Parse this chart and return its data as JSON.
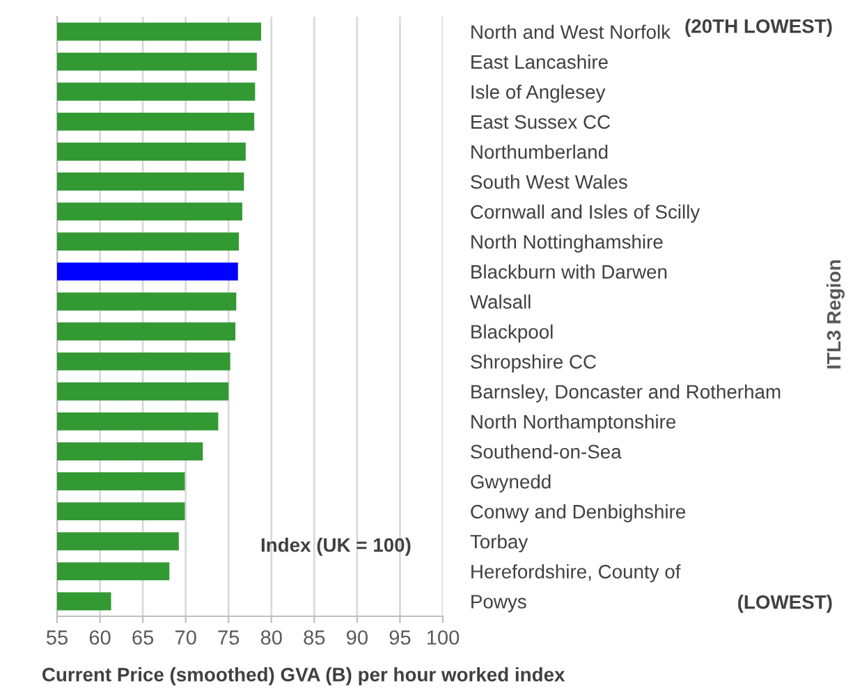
{
  "chart_data": {
    "type": "bar",
    "orientation": "horizontal",
    "categories": [
      "North and West Norfolk",
      "East Lancashire",
      "Isle of Anglesey",
      "East Sussex CC",
      "Northumberland",
      "South West Wales",
      "Cornwall and Isles of Scilly",
      "North Nottinghamshire",
      "Blackburn with Darwen",
      "Walsall",
      "Blackpool",
      "Shropshire CC",
      "Barnsley, Doncaster and Rotherham",
      "North Northamptonshire",
      "Southend-on-Sea",
      "Gwynedd",
      "Conwy and Denbighshire",
      "Torbay",
      "Herefordshire, County of",
      "Powys"
    ],
    "values": [
      78.8,
      78.3,
      78.1,
      78.0,
      77.0,
      76.8,
      76.6,
      76.2,
      76.1,
      75.9,
      75.8,
      75.2,
      75.0,
      73.8,
      72.0,
      69.9,
      69.9,
      69.2,
      68.1,
      61.3
    ],
    "colors": [
      "#339933",
      "#339933",
      "#339933",
      "#339933",
      "#339933",
      "#339933",
      "#339933",
      "#339933",
      "#0000ff",
      "#339933",
      "#339933",
      "#339933",
      "#339933",
      "#339933",
      "#339933",
      "#339933",
      "#339933",
      "#339933",
      "#339933",
      "#339933"
    ],
    "xlim": [
      55,
      100
    ],
    "xticks": [
      55,
      60,
      65,
      70,
      75,
      80,
      85,
      90,
      95,
      100
    ],
    "xlabel": "Current Price (smoothed) GVA (B) per hour worked index",
    "ylabel": "ITL3 Region",
    "annotations": [
      "(20TH LOWEST)",
      "(LOWEST)",
      "Index (UK = 100)"
    ],
    "grid": "x",
    "legend": false
  }
}
